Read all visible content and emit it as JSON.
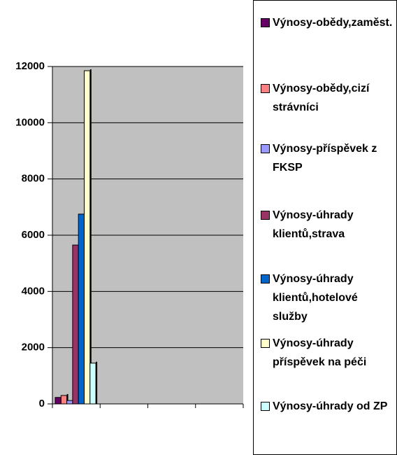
{
  "chart_data": {
    "type": "bar",
    "categories": [
      null,
      null,
      null,
      null
    ],
    "series": [
      {
        "name": "Výnosy-obědy,zaměst.",
        "color": "#660066",
        "values": [
          230,
          null,
          null,
          null
        ]
      },
      {
        "name": "Výnosy-obědy,cizí strávníci",
        "color": "#ff8080",
        "values": [
          300,
          null,
          null,
          null
        ]
      },
      {
        "name": "Výnosy-příspěvek z FKSP",
        "color": "#9999ff",
        "values": [
          120,
          null,
          null,
          null
        ]
      },
      {
        "name": "Výnosy-úhrady klientů,strava",
        "color": "#993366",
        "values": [
          5650,
          null,
          null,
          null
        ]
      },
      {
        "name": "Výnosy-úhrady klientů,hotelové služby",
        "color": "#0066cc",
        "values": [
          6750,
          null,
          null,
          null
        ]
      },
      {
        "name": "Výnosy-úhrady příspěvek na péči",
        "color": "#ffffcc",
        "values": [
          11850,
          null,
          null,
          null
        ]
      },
      {
        "name": "Výnosy-úhrady od ZP",
        "color": "#ccffff",
        "values": [
          1450,
          null,
          null,
          null
        ]
      }
    ],
    "ylim": [
      0,
      12000
    ],
    "yticks": [
      0,
      2000,
      4000,
      6000,
      8000,
      10000,
      12000
    ],
    "grid": true
  }
}
